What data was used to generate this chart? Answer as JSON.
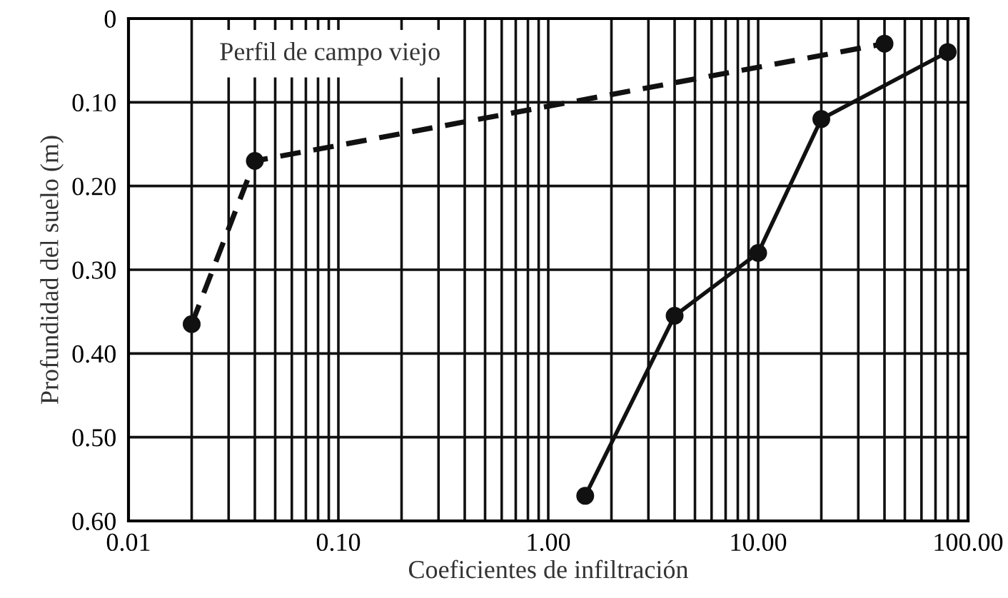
{
  "chart_data": {
    "type": "line",
    "xlabel": "Coeficientes de infiltración",
    "ylabel": "Profundidad del suelo (m)",
    "log": "x",
    "grid": true,
    "marker": "circle",
    "xlim": [
      0.01,
      100
    ],
    "xticks": [
      {
        "value": 0.01,
        "label": "0.01"
      },
      {
        "value": 0.1,
        "label": "0.10"
      },
      {
        "value": 1,
        "label": "1.00"
      },
      {
        "value": 10,
        "label": "10.00"
      },
      {
        "value": 100,
        "label": "100.00"
      }
    ],
    "ylim": [
      0.6,
      0
    ],
    "yticks": [
      0,
      {
        "value": 0.1,
        "label": "0.10"
      },
      {
        "value": 0.2,
        "label": "0.20"
      },
      {
        "value": 0.3,
        "label": "0.30"
      },
      {
        "value": 0.4,
        "label": "0.40"
      },
      {
        "value": 0.5,
        "label": "0.50"
      },
      {
        "value": 0.6,
        "label": "0.60"
      }
    ],
    "series": [
      {
        "color": "#111111",
        "line_style": "dashed",
        "x": [
          0.02,
          0.04,
          40
        ],
        "values": [
          0.365,
          0.17,
          0.03
        ]
      },
      {
        "color": "#111111",
        "line_style": "solid",
        "x": [
          1.5,
          4,
          10,
          20,
          80
        ],
        "values": [
          0.57,
          0.355,
          0.28,
          0.12,
          0.04
        ]
      }
    ],
    "annotations": [
      "Perfil de campo viejo"
    ]
  }
}
